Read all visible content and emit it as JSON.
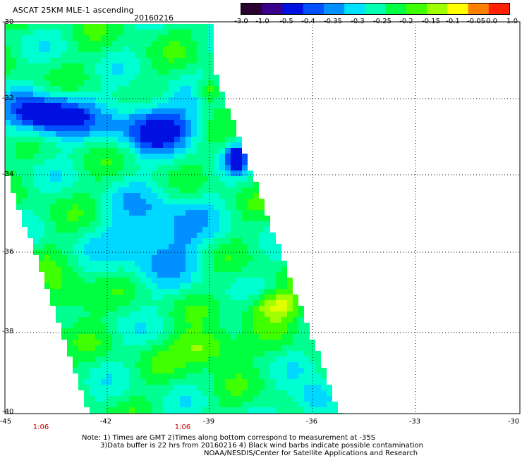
{
  "header": {
    "title": "ASCAT 25KM MLE-1 ascending",
    "date": "20160216"
  },
  "colorbar": {
    "labels": [
      "-3.0",
      "-1.0",
      "-0.5",
      "-0.4",
      "-0.35",
      "-0.3",
      "-0.25",
      "-0.2",
      "-0.15",
      "-0.1",
      "-0.05",
      "0.0",
      "1.0"
    ],
    "colors": [
      "#2a0030",
      "#3a008c",
      "#0010e0",
      "#0050ff",
      "#0090ff",
      "#00e0ff",
      "#00ffb0",
      "#00ff40",
      "#40ff00",
      "#a0ff00",
      "#ffff00",
      "#ff8000",
      "#ff2000"
    ]
  },
  "axes": {
    "lat_labels": [
      "-30",
      "-32",
      "-34",
      "-36",
      "-38",
      "-40"
    ],
    "lon_labels": [
      "-45",
      "-42",
      "-39",
      "-36",
      "-33",
      "-30"
    ],
    "pass_times": [
      "1:06",
      "1:06"
    ]
  },
  "notes": {
    "line1": "Note: 1) Times are GMT 2)Times along bottom correspond to measurement at -35S",
    "line2": "3)Data buffer is 22 hrs from 20160216 4) Black wind barbs indicate possible contamination",
    "line3": "NOAA/NESDIS/Center for Satellite Applications and Research"
  }
}
